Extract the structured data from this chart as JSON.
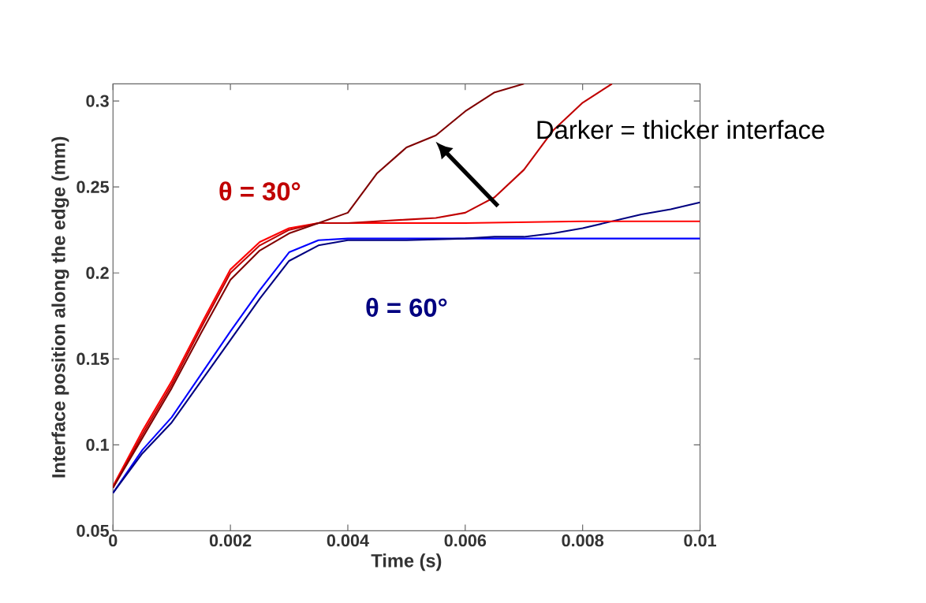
{
  "chart_data": {
    "type": "line",
    "xlabel": "Time (s)",
    "ylabel": "Interface position along the edge (mm)",
    "xlim": [
      0,
      0.01
    ],
    "ylim": [
      0.05,
      0.31
    ],
    "xticks": [
      0,
      0.002,
      0.004,
      0.006,
      0.008,
      0.01
    ],
    "yticks": [
      0.05,
      0.1,
      0.15,
      0.2,
      0.25,
      0.3
    ],
    "grid": false,
    "marker": "none",
    "line_style": "solid",
    "annotations": [
      "θ = 30°",
      "θ = 60°",
      "Darker = thicker interface"
    ],
    "series": [
      {
        "color": "#0000ff",
        "x": [
          0,
          0.0005,
          0.001,
          0.0015,
          0.002,
          0.0025,
          0.003,
          0.0035,
          0.004,
          0.006,
          0.008,
          0.01
        ],
        "values": [
          0.072,
          0.097,
          0.116,
          0.141,
          0.166,
          0.19,
          0.212,
          0.219,
          0.22,
          0.22,
          0.22,
          0.22
        ]
      },
      {
        "color": "#000080",
        "x": [
          0,
          0.0005,
          0.001,
          0.0015,
          0.002,
          0.0025,
          0.003,
          0.0035,
          0.004,
          0.005,
          0.006,
          0.0065,
          0.007,
          0.0075,
          0.008,
          0.0085,
          0.009,
          0.0095,
          0.01
        ],
        "values": [
          0.072,
          0.095,
          0.113,
          0.137,
          0.161,
          0.185,
          0.207,
          0.216,
          0.219,
          0.219,
          0.22,
          0.221,
          0.221,
          0.223,
          0.226,
          0.23,
          0.234,
          0.237,
          0.241
        ]
      },
      {
        "color": "#ff0000",
        "x": [
          0,
          0.0005,
          0.001,
          0.0015,
          0.002,
          0.0025,
          0.003,
          0.0035,
          0.004,
          0.006,
          0.008,
          0.01
        ],
        "values": [
          0.076,
          0.108,
          0.137,
          0.17,
          0.202,
          0.218,
          0.226,
          0.229,
          0.229,
          0.229,
          0.23,
          0.23
        ]
      },
      {
        "color": "#c00000",
        "x": [
          0,
          0.0005,
          0.001,
          0.0015,
          0.002,
          0.0025,
          0.003,
          0.0035,
          0.004,
          0.005,
          0.0055,
          0.006,
          0.0065,
          0.007,
          0.0075,
          0.008,
          0.0085
        ],
        "values": [
          0.075,
          0.106,
          0.135,
          0.168,
          0.2,
          0.216,
          0.225,
          0.229,
          0.229,
          0.231,
          0.232,
          0.235,
          0.244,
          0.26,
          0.283,
          0.299,
          0.31
        ]
      },
      {
        "color": "#800000",
        "x": [
          0,
          0.0005,
          0.001,
          0.0015,
          0.002,
          0.0025,
          0.003,
          0.0035,
          0.004,
          0.0045,
          0.005,
          0.0055,
          0.006,
          0.0065,
          0.007
        ],
        "values": [
          0.075,
          0.104,
          0.133,
          0.165,
          0.196,
          0.213,
          0.223,
          0.229,
          0.235,
          0.258,
          0.273,
          0.28,
          0.294,
          0.305,
          0.31
        ]
      }
    ]
  }
}
